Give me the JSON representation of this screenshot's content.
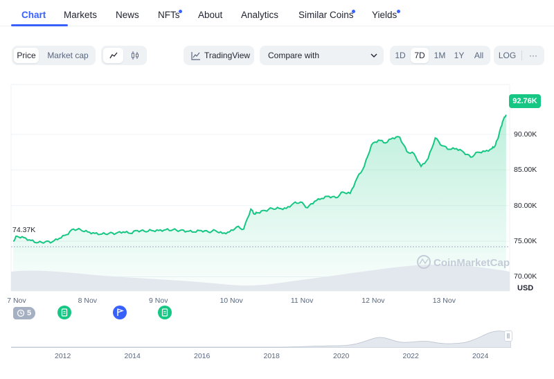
{
  "tabs": [
    {
      "label": "Chart"
    },
    {
      "label": "Markets"
    },
    {
      "label": "News"
    },
    {
      "label": "NFTs"
    },
    {
      "label": "About"
    },
    {
      "label": "Analytics"
    },
    {
      "label": "Similar Coins"
    },
    {
      "label": "Yields"
    }
  ],
  "toolbar": {
    "price_label": "Price",
    "market_cap_label": "Market cap",
    "tradingview_label": "TradingView",
    "compare_label": "Compare with",
    "ranges": [
      "1D",
      "7D",
      "1M",
      "1Y",
      "All"
    ],
    "active_range": "7D",
    "log_label": "LOG",
    "more_label": "···"
  },
  "chart_data": {
    "type": "area",
    "currency": "USD",
    "current_price_label": "92.76K",
    "low_label": "74.37K",
    "ylim": [
      68000,
      97000
    ],
    "y_ticks": [
      "90.00K",
      "85.00K",
      "80.00K",
      "75.00K",
      "70.00K"
    ],
    "y_tick_values": [
      90000,
      85000,
      80000,
      75000,
      70000
    ],
    "x_ticks": [
      "7 Nov",
      "8 Nov",
      "9 Nov",
      "10 Nov",
      "11 Nov",
      "12 Nov",
      "13 Nov"
    ],
    "x_tick_values": [
      0,
      1,
      2,
      3,
      4,
      5,
      6
    ],
    "xlim": [
      -0.08,
      6.95
    ],
    "series": [
      {
        "x": [
          -0.05,
          0,
          0.1,
          0.2,
          0.3,
          0.4,
          0.5,
          0.6,
          0.7,
          0.8,
          0.9,
          1.0,
          1.1,
          1.2,
          1.3,
          1.4,
          1.5,
          1.6,
          1.7,
          1.8,
          1.9,
          2.0,
          2.1,
          2.2,
          2.3,
          2.4,
          2.5,
          2.6,
          2.7,
          2.8,
          2.9,
          3.0,
          3.1,
          3.2,
          3.3,
          3.35,
          3.4,
          3.5,
          3.6,
          3.7,
          3.8,
          3.9,
          4.0,
          4.1,
          4.2,
          4.3,
          4.4,
          4.5,
          4.6,
          4.7,
          4.8,
          4.9,
          5.0,
          5.1,
          5.2,
          5.3,
          5.4,
          5.5,
          5.6,
          5.7,
          5.8,
          5.9,
          6.0,
          6.1,
          6.2,
          6.3,
          6.4,
          6.5,
          6.6,
          6.7,
          6.75,
          6.8,
          6.85,
          6.9
        ],
        "y": [
          75000,
          75700,
          75500,
          75100,
          74800,
          74900,
          74900,
          75400,
          75900,
          76700,
          76600,
          76300,
          76100,
          76000,
          76100,
          76100,
          76300,
          76100,
          76500,
          76400,
          76500,
          76500,
          76600,
          76600,
          76500,
          76400,
          76300,
          76500,
          76300,
          76500,
          76100,
          76300,
          77000,
          76700,
          79500,
          78800,
          79000,
          79300,
          79600,
          79600,
          79600,
          80300,
          80500,
          79700,
          80600,
          81000,
          81300,
          81100,
          81900,
          81700,
          83900,
          85500,
          88500,
          89200,
          88800,
          89500,
          89600,
          87600,
          87300,
          85500,
          86600,
          89500,
          88400,
          87900,
          88000,
          87500,
          86800,
          87500,
          87600,
          88000,
          88500,
          90000,
          91800,
          92760
        ]
      }
    ],
    "navigator_ticks": [
      "2012",
      "2014",
      "2016",
      "2018",
      "2020",
      "2022",
      "2024"
    ],
    "event_count": "5"
  },
  "watermark": "CoinMarketCap",
  "colors": {
    "accent": "#3861fb",
    "up": "#16c784",
    "event_doc": "#16c784",
    "event_flag": "#3861fb"
  },
  "icons": {
    "line_chart": "line-chart-icon",
    "candle_chart": "candlestick-icon",
    "tradingview": "tradingview-icon",
    "history": "history-icon",
    "document": "document-icon",
    "flag": "flag-icon"
  }
}
